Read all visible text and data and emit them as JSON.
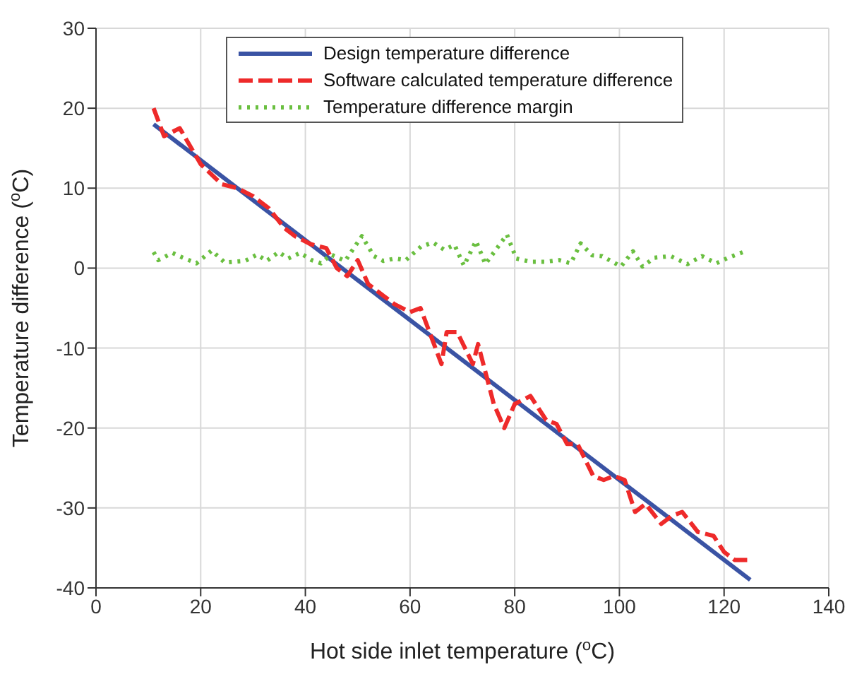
{
  "chart_data": {
    "type": "line",
    "xlabel": "Hot side inlet temperature ($^{o}$C)",
    "ylabel": "Temperature difference ($^{o}$C)",
    "xlim": [
      0,
      140
    ],
    "xticks": [
      0,
      20,
      40,
      60,
      80,
      100,
      120,
      140
    ],
    "ylim": [
      -40,
      30
    ],
    "yticks": [
      -40,
      -30,
      -20,
      -10,
      0,
      10,
      20,
      30
    ],
    "grid": true,
    "legend": "top",
    "series": [
      {
        "name": "Design temperature difference",
        "color": "#3a53a4",
        "line_style": "solid",
        "x": [
          11,
          125
        ],
        "values": [
          18,
          -39
        ]
      },
      {
        "name": "Software calculated temperature difference",
        "color": "#ee2a2a",
        "line_style": "dashed",
        "x": [
          11,
          13,
          16,
          20,
          24,
          27,
          30,
          33,
          36,
          38,
          41,
          44,
          46,
          48,
          50,
          52,
          55,
          57,
          60,
          62,
          64,
          66,
          67,
          69,
          72,
          73,
          76,
          78,
          80,
          83,
          86,
          88,
          90,
          92,
          95,
          97,
          99,
          101,
          103,
          105,
          108,
          110,
          112,
          115,
          118,
          120,
          122,
          125
        ],
        "values": [
          20,
          16.5,
          17.5,
          13,
          10.5,
          10,
          9,
          7.5,
          5,
          4,
          3,
          2.5,
          0,
          -1,
          1,
          -2,
          -3.5,
          -4.5,
          -5.5,
          -5,
          -8.5,
          -12,
          -8,
          -8,
          -12,
          -9.5,
          -17,
          -20,
          -17,
          -16,
          -19,
          -19.5,
          -22,
          -22,
          -26,
          -26.5,
          -26,
          -26.5,
          -30.5,
          -29.5,
          -32,
          -31,
          -30.5,
          -33,
          -33.5,
          -35.5,
          -36.5,
          -36.5
        ]
      },
      {
        "name": "Temperature difference margin",
        "color": "#6abf40",
        "line_style": "dotted",
        "x": [
          11,
          11.9,
          14.6,
          16.6,
          19.2,
          22.1,
          24.6,
          28.5,
          30.8,
          32.6,
          34.9,
          36.7,
          39,
          41.2,
          43,
          44.9,
          47.6,
          50.8,
          53.1,
          54.9,
          57.1,
          59.2,
          62.1,
          64.4,
          66.5,
          68.5,
          70.3,
          72.6,
          74.4,
          78.5,
          80.3,
          83,
          85.8,
          88.5,
          90.7,
          92.6,
          94.8,
          96.7,
          100.3,
          102.6,
          104.4,
          106.7,
          109.8,
          113,
          115.8,
          118.5,
          120.8,
          124
        ],
        "values": [
          2,
          1,
          1.9,
          1.3,
          0.6,
          2.2,
          0.7,
          0.9,
          1.7,
          0.9,
          2,
          1.2,
          1.9,
          1,
          0.6,
          1.7,
          0.9,
          4,
          1.5,
          0.9,
          1.2,
          1,
          2.7,
          3.2,
          2.3,
          2.9,
          0.3,
          3.4,
          0.5,
          4.2,
          1.2,
          0.8,
          0.8,
          1,
          0.6,
          3.1,
          1.6,
          1.5,
          0.2,
          2.1,
          0.2,
          1.3,
          1.5,
          0.5,
          1.5,
          0.6,
          1.3,
          2.1
        ]
      }
    ]
  }
}
